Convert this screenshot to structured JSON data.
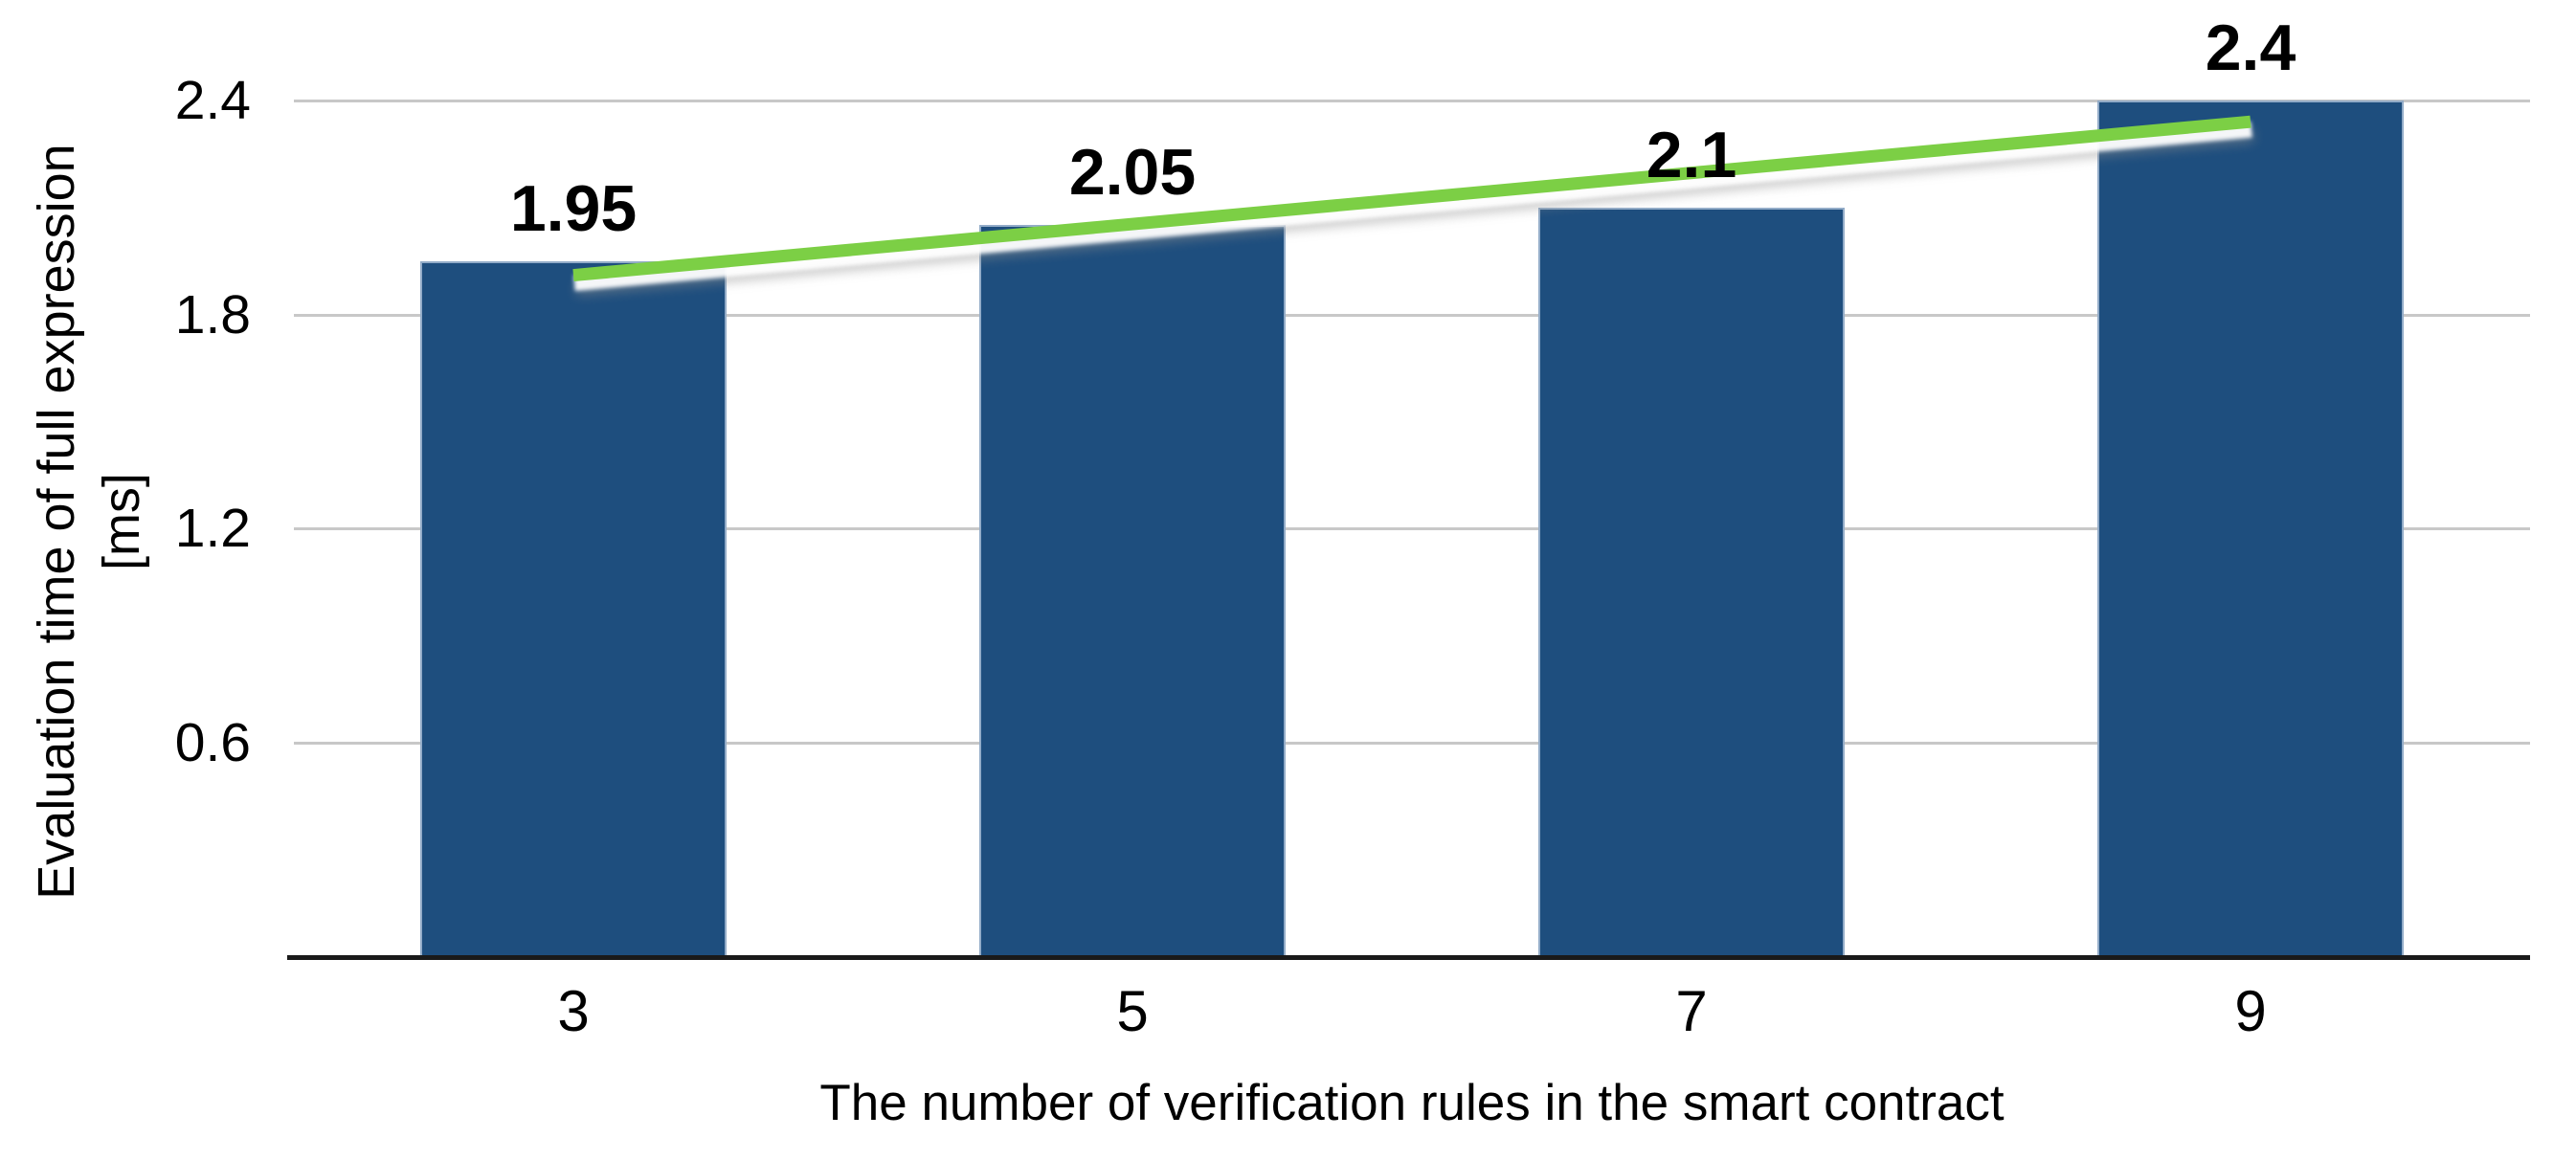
{
  "chart_data": {
    "type": "bar",
    "title": "",
    "categories": [
      "3",
      "5",
      "7",
      "9"
    ],
    "values": [
      1.95,
      2.05,
      2.1,
      2.4
    ],
    "bar_labels": [
      "1.95",
      "2.05",
      "2.1",
      "2.4"
    ],
    "xlabel": "The number of verification rules in the smart contract",
    "ylabel": "Evaluation time of full expression\n[ms]",
    "yticks": [
      0.6,
      1.2,
      1.8,
      2.4
    ],
    "ytick_labels": [
      "0.6",
      "1.2",
      "1.8",
      "2.4"
    ],
    "ylim": [
      0,
      2.68
    ],
    "grid": "horizontal",
    "legend": "none",
    "bar_color": "#1E4E7E",
    "gridline_color": "#C8C8C8",
    "axis_line_color": "#1A1A1A",
    "trendline": {
      "type": "linear",
      "color": "#7CCF45",
      "start_category_index": 0,
      "end_category_index": 3,
      "start_value": 1.91,
      "end_value": 2.34
    }
  }
}
